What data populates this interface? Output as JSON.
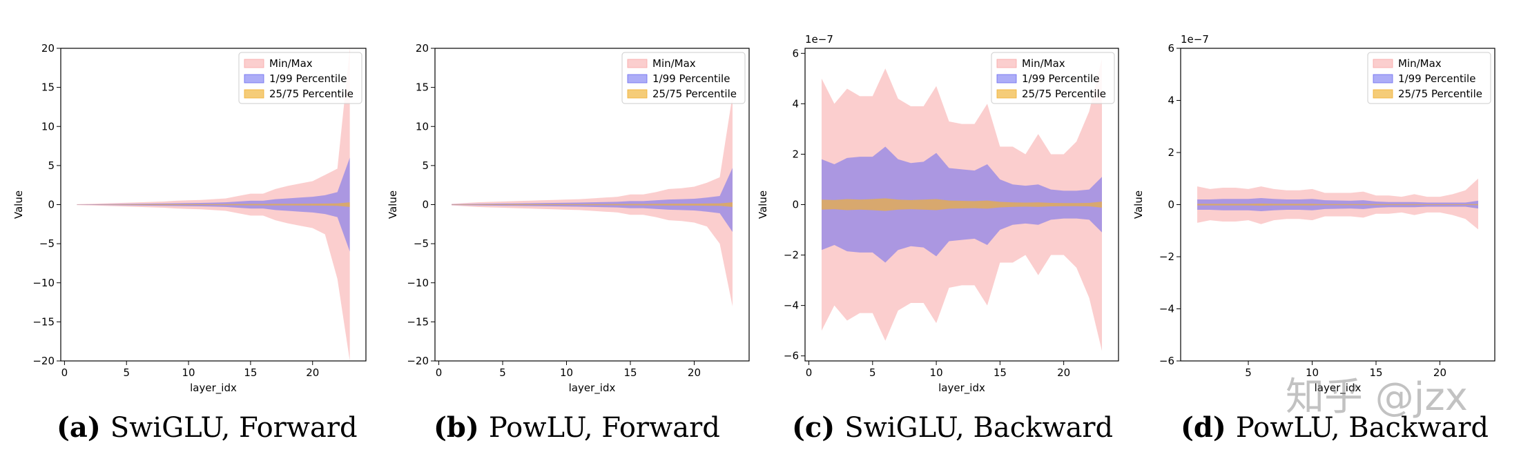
{
  "captions": [
    {
      "tag": "(a)",
      "text": "SwiGLU, Forward"
    },
    {
      "tag": "(b)",
      "text": "PowLU, Forward"
    },
    {
      "tag": "(c)",
      "text": "SwiGLU, Backward"
    },
    {
      "tag": "(d)",
      "text": "PowLU, Backward"
    }
  ],
  "watermark": "知乎 @jzx",
  "colors": {
    "minmax": "#f8a5a5",
    "p1_99": "#6a6af0",
    "p25_75": "#f0b030"
  },
  "chart_data": [
    {
      "type": "area",
      "title": "",
      "xlabel": "layer_idx",
      "ylabel": "Value",
      "xlim": [
        -0.3,
        24.3
      ],
      "ylim": [
        -20,
        20
      ],
      "xticks": [
        0,
        5,
        10,
        15,
        20
      ],
      "yticks": [
        -20,
        -15,
        -10,
        -5,
        0,
        5,
        10,
        15,
        20
      ],
      "scale_label": "",
      "legend_position": "top-right",
      "grid": false,
      "x": [
        1,
        8,
        9,
        10,
        11,
        12,
        13,
        14,
        15,
        16,
        17,
        18,
        19,
        20,
        21,
        22,
        23
      ],
      "series": [
        {
          "name": "Min/Max",
          "upper": [
            0.05,
            0.4,
            0.5,
            0.55,
            0.6,
            0.7,
            0.8,
            1.1,
            1.4,
            1.4,
            2.0,
            2.4,
            2.7,
            3.0,
            3.8,
            4.6,
            20.0
          ],
          "lower": [
            -0.05,
            -0.4,
            -0.5,
            -0.55,
            -0.6,
            -0.7,
            -0.8,
            -1.1,
            -1.4,
            -1.4,
            -2.0,
            -2.4,
            -2.7,
            -3.0,
            -3.8,
            -9.5,
            -20.0
          ]
        },
        {
          "name": "1/99 Percentile",
          "upper": [
            0.02,
            0.15,
            0.18,
            0.2,
            0.22,
            0.25,
            0.3,
            0.4,
            0.5,
            0.5,
            0.7,
            0.8,
            0.9,
            1.0,
            1.2,
            1.6,
            6.0
          ],
          "lower": [
            -0.02,
            -0.15,
            -0.18,
            -0.2,
            -0.22,
            -0.25,
            -0.3,
            -0.4,
            -0.5,
            -0.5,
            -0.7,
            -0.8,
            -0.9,
            -1.0,
            -1.2,
            -1.6,
            -6.0
          ]
        },
        {
          "name": "25/75 Percentile",
          "upper": [
            0.01,
            0.05,
            0.05,
            0.05,
            0.06,
            0.06,
            0.07,
            0.08,
            0.09,
            0.09,
            0.1,
            0.1,
            0.11,
            0.12,
            0.13,
            0.15,
            0.3
          ],
          "lower": [
            -0.01,
            -0.05,
            -0.05,
            -0.05,
            -0.06,
            -0.06,
            -0.07,
            -0.08,
            -0.09,
            -0.09,
            -0.1,
            -0.1,
            -0.11,
            -0.12,
            -0.13,
            -0.15,
            -0.3
          ]
        }
      ]
    },
    {
      "type": "area",
      "title": "",
      "xlabel": "layer_idx",
      "ylabel": "Value",
      "xlim": [
        -0.3,
        24.3
      ],
      "ylim": [
        -20,
        20
      ],
      "xticks": [
        0,
        5,
        10,
        15,
        20
      ],
      "yticks": [
        -20,
        -15,
        -10,
        -5,
        0,
        5,
        10,
        15,
        20
      ],
      "scale_label": "",
      "legend_position": "top-right",
      "grid": false,
      "x": [
        1,
        2,
        3,
        4,
        5,
        6,
        7,
        8,
        9,
        10,
        11,
        12,
        13,
        14,
        15,
        16,
        17,
        18,
        19,
        20,
        21,
        22,
        23
      ],
      "series": [
        {
          "name": "Min/Max",
          "upper": [
            0.1,
            0.2,
            0.3,
            0.35,
            0.4,
            0.45,
            0.5,
            0.55,
            0.6,
            0.65,
            0.7,
            0.8,
            0.9,
            1.0,
            1.3,
            1.3,
            1.6,
            2.0,
            2.1,
            2.3,
            2.8,
            3.5,
            14.0
          ],
          "lower": [
            -0.1,
            -0.2,
            -0.3,
            -0.35,
            -0.4,
            -0.45,
            -0.5,
            -0.55,
            -0.6,
            -0.65,
            -0.7,
            -0.8,
            -0.9,
            -1.0,
            -1.3,
            -1.3,
            -1.6,
            -2.0,
            -2.1,
            -2.3,
            -2.8,
            -5.0,
            -13.0
          ]
        },
        {
          "name": "1/99 Percentile",
          "upper": [
            0.05,
            0.08,
            0.1,
            0.12,
            0.14,
            0.16,
            0.18,
            0.2,
            0.22,
            0.24,
            0.26,
            0.3,
            0.33,
            0.36,
            0.45,
            0.45,
            0.55,
            0.65,
            0.7,
            0.75,
            0.9,
            1.1,
            4.7
          ],
          "lower": [
            -0.05,
            -0.08,
            -0.1,
            -0.12,
            -0.14,
            -0.16,
            -0.18,
            -0.2,
            -0.22,
            -0.24,
            -0.26,
            -0.3,
            -0.33,
            -0.36,
            -0.45,
            -0.45,
            -0.55,
            -0.65,
            -0.7,
            -0.75,
            -0.9,
            -1.1,
            -3.5
          ]
        },
        {
          "name": "25/75 Percentile",
          "upper": [
            0.02,
            0.03,
            0.03,
            0.04,
            0.04,
            0.05,
            0.05,
            0.05,
            0.06,
            0.06,
            0.06,
            0.07,
            0.07,
            0.08,
            0.09,
            0.09,
            0.1,
            0.11,
            0.12,
            0.12,
            0.14,
            0.16,
            0.3
          ],
          "lower": [
            -0.02,
            -0.03,
            -0.03,
            -0.04,
            -0.04,
            -0.05,
            -0.05,
            -0.05,
            -0.06,
            -0.06,
            -0.06,
            -0.07,
            -0.07,
            -0.08,
            -0.09,
            -0.09,
            -0.1,
            -0.11,
            -0.12,
            -0.12,
            -0.14,
            -0.16,
            -0.3
          ]
        }
      ]
    },
    {
      "type": "area",
      "title": "",
      "xlabel": "layer_idx",
      "ylabel": "Value",
      "xlim": [
        -0.3,
        24.3
      ],
      "ylim": [
        -6.2,
        6.2
      ],
      "xticks": [
        0,
        5,
        10,
        15,
        20
      ],
      "yticks": [
        -6,
        -4,
        -2,
        0,
        2,
        4,
        6
      ],
      "scale_label": "1e−7",
      "legend_position": "top-right",
      "grid": false,
      "x": [
        1,
        2,
        3,
        4,
        5,
        6,
        7,
        8,
        9,
        10,
        11,
        12,
        13,
        14,
        15,
        16,
        17,
        18,
        19,
        20,
        21,
        22,
        23
      ],
      "series": [
        {
          "name": "Min/Max",
          "upper": [
            5.0,
            4.0,
            4.6,
            4.3,
            4.3,
            5.4,
            4.2,
            3.9,
            3.9,
            4.7,
            3.3,
            3.2,
            3.2,
            4.0,
            2.3,
            2.3,
            2.0,
            2.8,
            2.0,
            2.0,
            2.5,
            3.7,
            5.8
          ],
          "lower": [
            -5.0,
            -4.0,
            -4.6,
            -4.3,
            -4.3,
            -5.4,
            -4.2,
            -3.9,
            -3.9,
            -4.7,
            -3.3,
            -3.2,
            -3.2,
            -4.0,
            -2.3,
            -2.3,
            -2.0,
            -2.8,
            -2.0,
            -2.0,
            -2.5,
            -3.7,
            -5.8
          ]
        },
        {
          "name": "1/99 Percentile",
          "upper": [
            1.8,
            1.6,
            1.85,
            1.9,
            1.9,
            2.3,
            1.8,
            1.65,
            1.7,
            2.05,
            1.45,
            1.4,
            1.35,
            1.6,
            1.0,
            0.8,
            0.75,
            0.8,
            0.6,
            0.55,
            0.55,
            0.6,
            1.1
          ],
          "lower": [
            -1.8,
            -1.6,
            -1.85,
            -1.9,
            -1.9,
            -2.3,
            -1.8,
            -1.65,
            -1.7,
            -2.05,
            -1.45,
            -1.4,
            -1.35,
            -1.6,
            -1.0,
            -0.8,
            -0.75,
            -0.8,
            -0.6,
            -0.55,
            -0.55,
            -0.6,
            -1.1
          ]
        },
        {
          "name": "25/75 Percentile",
          "upper": [
            0.2,
            0.18,
            0.22,
            0.2,
            0.22,
            0.25,
            0.2,
            0.18,
            0.2,
            0.22,
            0.16,
            0.15,
            0.14,
            0.16,
            0.11,
            0.09,
            0.08,
            0.09,
            0.07,
            0.06,
            0.06,
            0.07,
            0.12
          ],
          "lower": [
            -0.2,
            -0.18,
            -0.22,
            -0.2,
            -0.22,
            -0.25,
            -0.2,
            -0.18,
            -0.2,
            -0.22,
            -0.16,
            -0.15,
            -0.14,
            -0.16,
            -0.11,
            -0.09,
            -0.08,
            -0.09,
            -0.07,
            -0.06,
            -0.06,
            -0.07,
            -0.12
          ]
        }
      ]
    },
    {
      "type": "area",
      "title": "",
      "xlabel": "layer_idx",
      "ylabel": "Value",
      "xlim": [
        -0.3,
        24.3
      ],
      "ylim": [
        -6,
        6
      ],
      "xticks": [
        5,
        10,
        15,
        20
      ],
      "yticks": [
        -6,
        -4,
        -2,
        0,
        2,
        4,
        6
      ],
      "scale_label": "1e−7",
      "legend_position": "top-right",
      "grid": false,
      "x": [
        1,
        2,
        3,
        4,
        5,
        6,
        7,
        8,
        9,
        10,
        11,
        12,
        13,
        14,
        15,
        16,
        17,
        18,
        19,
        20,
        21,
        22,
        23
      ],
      "series": [
        {
          "name": "Min/Max",
          "upper": [
            0.7,
            0.6,
            0.65,
            0.65,
            0.6,
            0.7,
            0.6,
            0.55,
            0.55,
            0.6,
            0.45,
            0.45,
            0.45,
            0.5,
            0.35,
            0.35,
            0.3,
            0.4,
            0.3,
            0.3,
            0.4,
            0.55,
            1.0
          ],
          "lower": [
            -0.7,
            -0.6,
            -0.65,
            -0.65,
            -0.6,
            -0.75,
            -0.6,
            -0.55,
            -0.55,
            -0.6,
            -0.45,
            -0.45,
            -0.45,
            -0.5,
            -0.35,
            -0.35,
            -0.3,
            -0.4,
            -0.3,
            -0.3,
            -0.4,
            -0.55,
            -0.95
          ]
        },
        {
          "name": "1/99 Percentile",
          "upper": [
            0.2,
            0.2,
            0.22,
            0.22,
            0.22,
            0.25,
            0.22,
            0.2,
            0.2,
            0.22,
            0.17,
            0.16,
            0.15,
            0.17,
            0.12,
            0.1,
            0.1,
            0.1,
            0.08,
            0.08,
            0.08,
            0.08,
            0.15
          ],
          "lower": [
            -0.2,
            -0.2,
            -0.22,
            -0.22,
            -0.22,
            -0.25,
            -0.22,
            -0.2,
            -0.2,
            -0.22,
            -0.17,
            -0.16,
            -0.15,
            -0.17,
            -0.12,
            -0.1,
            -0.1,
            -0.1,
            -0.08,
            -0.08,
            -0.08,
            -0.08,
            -0.15
          ]
        },
        {
          "name": "25/75 Percentile",
          "upper": [
            0.03,
            0.03,
            0.03,
            0.03,
            0.03,
            0.04,
            0.03,
            0.03,
            0.03,
            0.03,
            0.02,
            0.02,
            0.02,
            0.02,
            0.02,
            0.015,
            0.015,
            0.015,
            0.012,
            0.012,
            0.012,
            0.012,
            0.02
          ],
          "lower": [
            -0.03,
            -0.03,
            -0.03,
            -0.03,
            -0.03,
            -0.04,
            -0.03,
            -0.03,
            -0.03,
            -0.03,
            -0.02,
            -0.02,
            -0.02,
            -0.02,
            -0.02,
            -0.015,
            -0.015,
            -0.015,
            -0.012,
            -0.012,
            -0.012,
            -0.012,
            -0.02
          ]
        }
      ]
    }
  ]
}
